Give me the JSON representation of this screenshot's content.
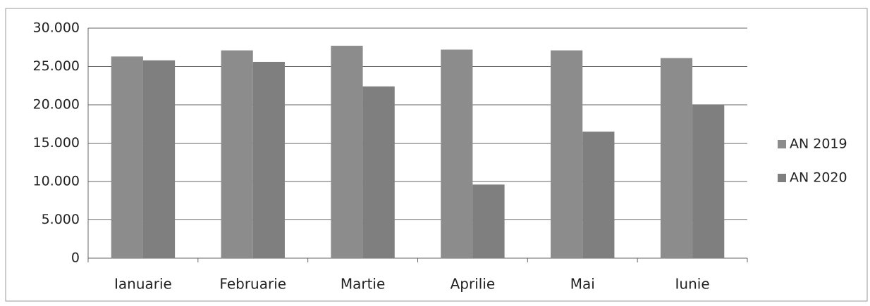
{
  "chart_data": {
    "type": "bar",
    "categories": [
      "Ianuarie",
      "Februarie",
      "Martie",
      "Aprilie",
      "Mai",
      "Iunie"
    ],
    "series": [
      {
        "name": "AN 2019",
        "color": "#8c8c8c",
        "values": [
          26300,
          27100,
          27700,
          27200,
          27100,
          26100
        ]
      },
      {
        "name": "AN 2020",
        "color": "#7f7f7f",
        "values": [
          25800,
          25600,
          22400,
          9600,
          16500,
          20000
        ]
      }
    ],
    "ylim": [
      0,
      30000
    ],
    "yticks": [
      0,
      {
        "value": 5000,
        "label": "5.000"
      },
      {
        "value": 10000,
        "label": "10.000"
      },
      {
        "value": 15000,
        "label": "15.000"
      },
      {
        "value": 20000,
        "label": "20.000"
      },
      {
        "value": 25000,
        "label": "25.000"
      },
      {
        "value": 30000,
        "label": "30.000"
      }
    ],
    "grid": true,
    "legend": "right"
  }
}
